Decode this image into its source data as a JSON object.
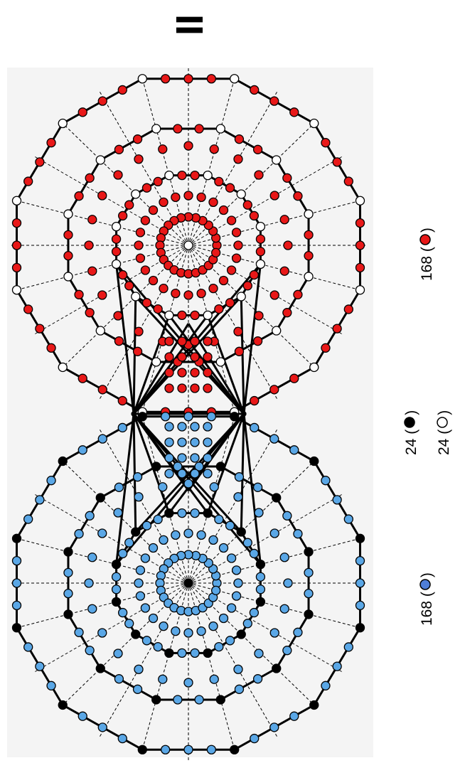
{
  "title": "II",
  "legend": [
    {
      "count": "168",
      "marker": "blue-dot",
      "color": "#4f7ed8"
    },
    {
      "count": "24",
      "marker": "black-dot",
      "color": "#000000"
    },
    {
      "count": "24",
      "marker": "open-dot",
      "color": "#ffffff"
    },
    {
      "count": "168",
      "marker": "red-dot",
      "color": "#e81818"
    }
  ],
  "colors": {
    "red_vertex": "#e81818",
    "blue_vertex": "#5aa7e6",
    "black_vertex": "#000000",
    "white_vertex": "#ffffff",
    "frame_bg": "#f4f4f4"
  }
}
